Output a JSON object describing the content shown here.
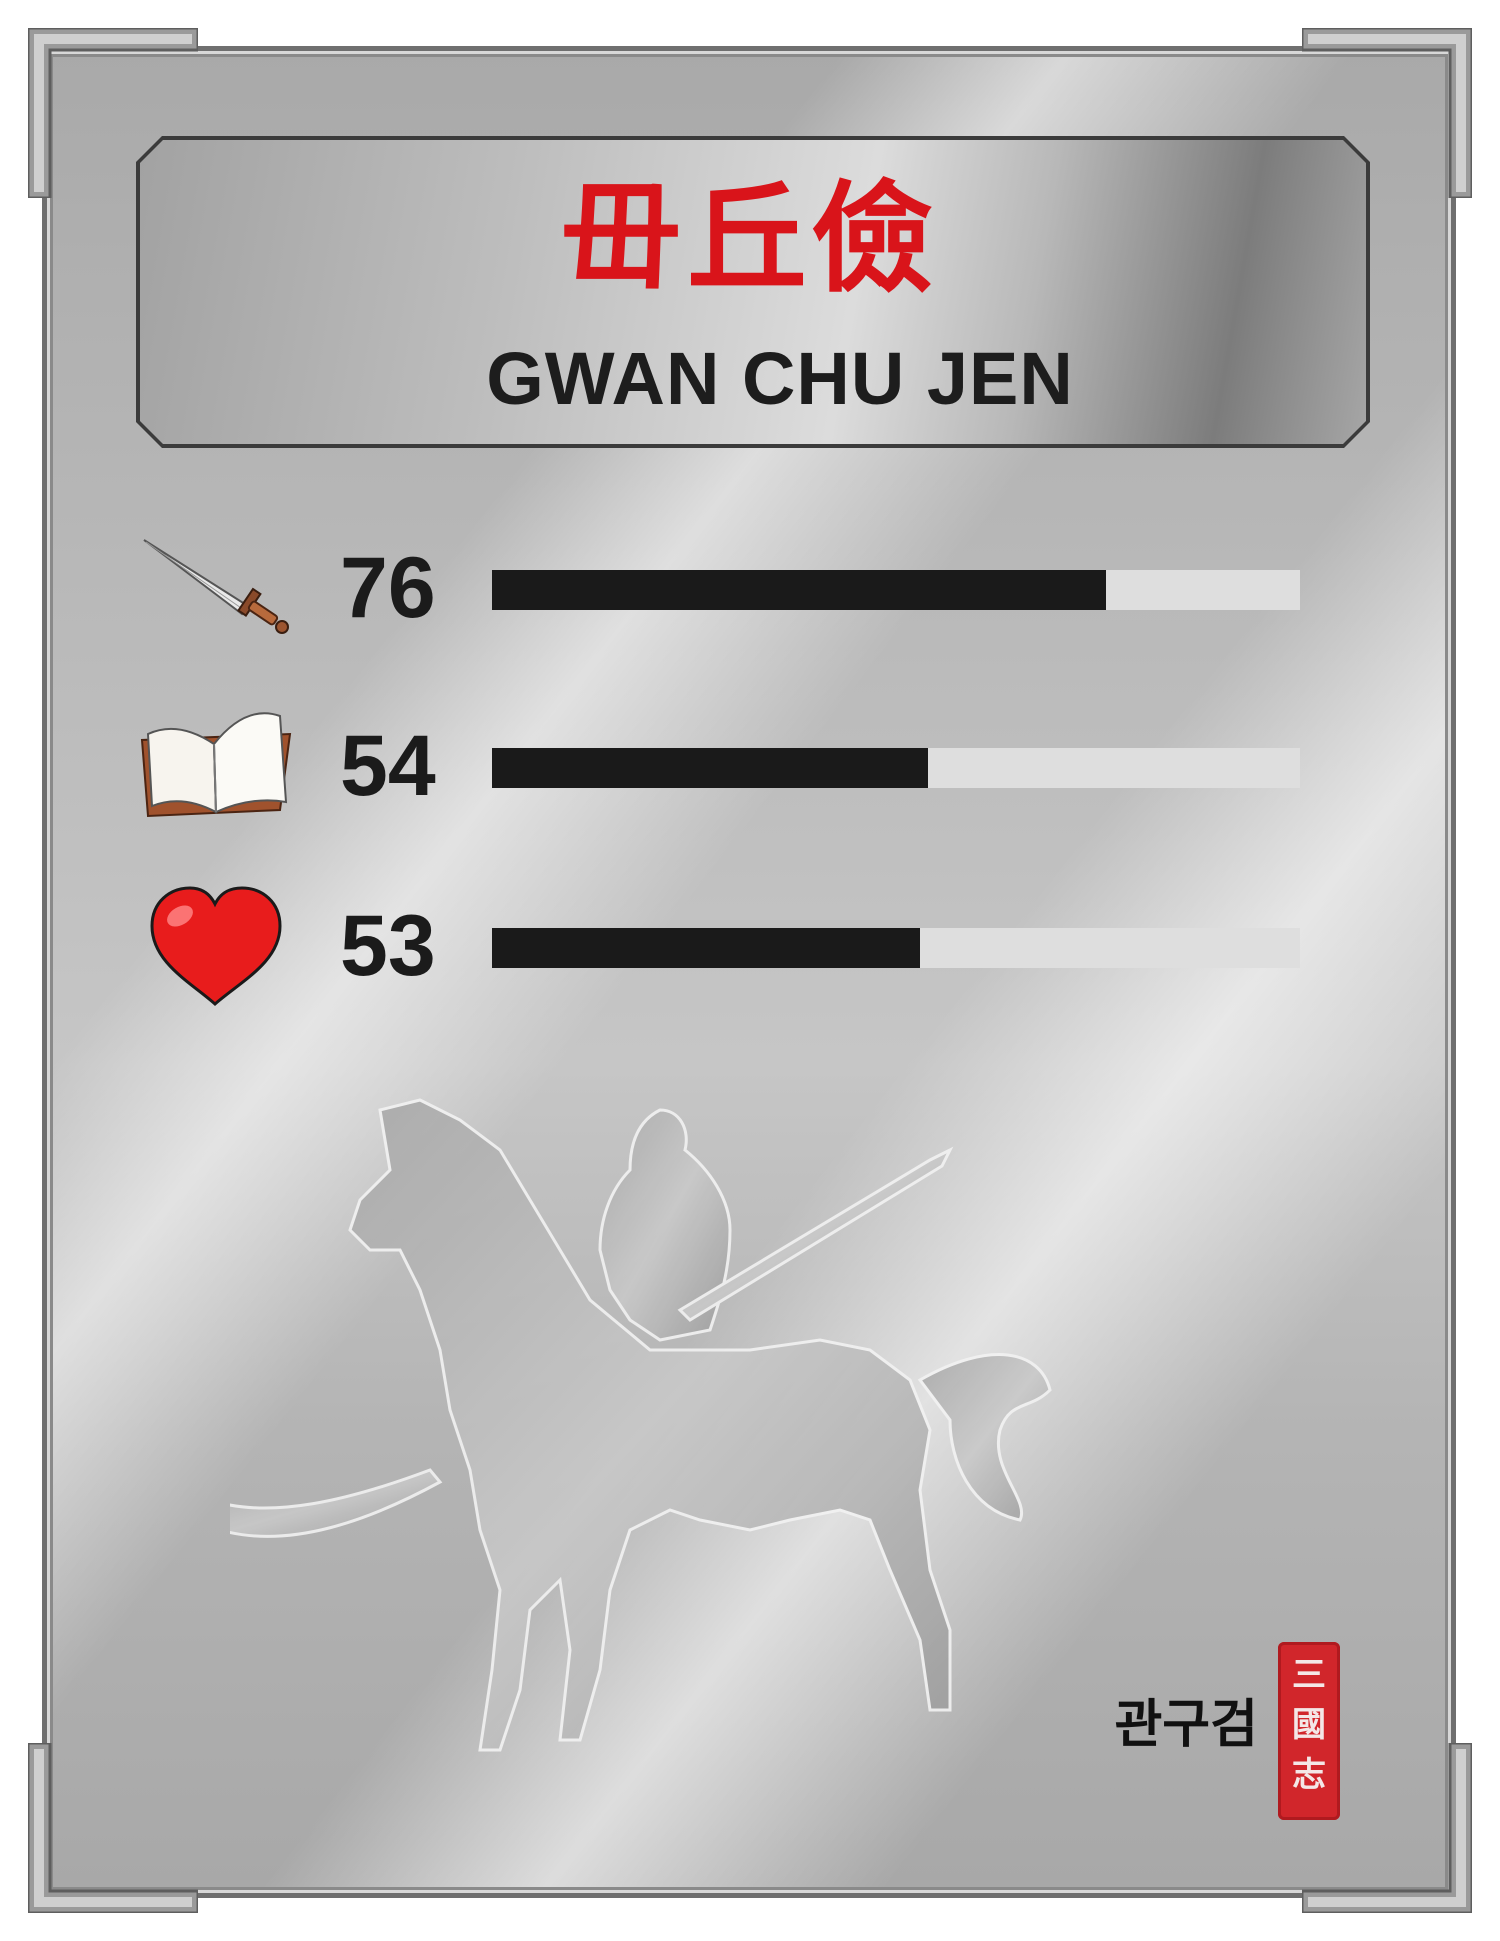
{
  "card": {
    "name_chinese": "毌丘儉",
    "name_english": "GWAN CHU JEN",
    "name_korean": "관구검",
    "seal_chars": [
      "三",
      "國",
      "志"
    ]
  },
  "stats": [
    {
      "icon": "sword-icon",
      "value": "76",
      "fraction": 0.76
    },
    {
      "icon": "book-icon",
      "value": "54",
      "fraction": 0.54
    },
    {
      "icon": "heart-icon",
      "value": "53",
      "fraction": 0.53
    }
  ],
  "colors": {
    "name_red": "#d9141a",
    "bar_fill": "#1a1a1a",
    "bar_track": "#dedede",
    "seal_red": "#d1262b"
  }
}
